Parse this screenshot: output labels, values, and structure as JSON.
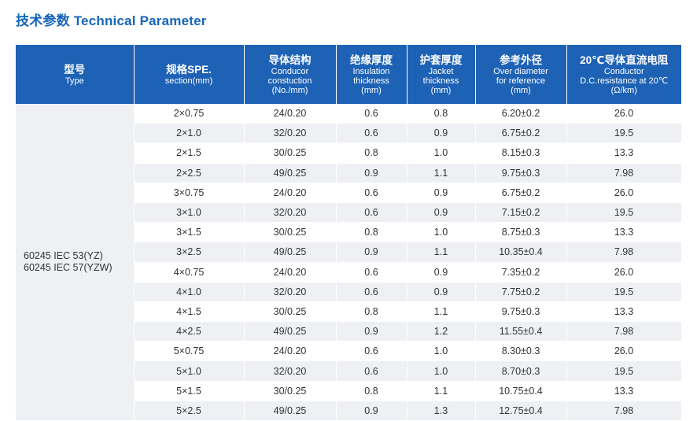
{
  "title": "技术参数 Technical Parameter",
  "headers": [
    {
      "main": "型号",
      "sub": [
        "Type"
      ]
    },
    {
      "main": "规格SPE.",
      "sub": [
        "section(mm)"
      ]
    },
    {
      "main": "导体结构",
      "sub": [
        "Conducor",
        "constuction",
        "(No./mm)"
      ]
    },
    {
      "main": "绝缘厚度",
      "sub": [
        "Insulation",
        "thickness",
        "(mm)"
      ]
    },
    {
      "main": "护套厚度",
      "sub": [
        "Jacket",
        "thickness",
        "(mm)"
      ]
    },
    {
      "main": "参考外径",
      "sub": [
        "Over diameter",
        "for reference",
        "(mm)"
      ]
    },
    {
      "main": "20℃导体直流电阻",
      "sub": [
        "Conductor",
        "D.C.resistance at 20℃",
        "(Ω/km)"
      ]
    }
  ],
  "type_lines": [
    "60245 IEC 53(YZ)",
    "60245 IEC 57(YZW)"
  ],
  "rows": [
    [
      "2×0.75",
      "24/0.20",
      "0.6",
      "0.8",
      "6.20±0.2",
      "26.0"
    ],
    [
      "2×1.0",
      "32/0.20",
      "0.6",
      "0.9",
      "6.75±0.2",
      "19.5"
    ],
    [
      "2×1.5",
      "30/0.25",
      "0.8",
      "1.0",
      "8.15±0.3",
      "13.3"
    ],
    [
      "2×2.5",
      "49/0.25",
      "0.9",
      "1.1",
      "9.75±0.3",
      "7.98"
    ],
    [
      "3×0.75",
      "24/0.20",
      "0.6",
      "0.9",
      "6.75±0.2",
      "26.0"
    ],
    [
      "3×1.0",
      "32/0.20",
      "0.6",
      "0.9",
      "7.15±0.2",
      "19.5"
    ],
    [
      "3×1.5",
      "30/0.25",
      "0.8",
      "1.0",
      "8.75±0.3",
      "13.3"
    ],
    [
      "3×2.5",
      "49/0.25",
      "0.9",
      "1.1",
      "10.35±0.4",
      "7.98"
    ],
    [
      "4×0.75",
      "24/0.20",
      "0.6",
      "0.9",
      "7.35±0.2",
      "26.0"
    ],
    [
      "4×1.0",
      "32/0.20",
      "0.6",
      "0.9",
      "7.75±0.2",
      "19.5"
    ],
    [
      "4×1.5",
      "30/0.25",
      "0.8",
      "1.1",
      "9.75±0.3",
      "13.3"
    ],
    [
      "4×2.5",
      "49/0.25",
      "0.9",
      "1.2",
      "11.55±0.4",
      "7.98"
    ],
    [
      "5×0.75",
      "24/0.20",
      "0.6",
      "1.0",
      "8.30±0.3",
      "26.0"
    ],
    [
      "5×1.0",
      "32/0.20",
      "0.6",
      "1.0",
      "8.70±0.3",
      "19.5"
    ],
    [
      "5×1.5",
      "30/0.25",
      "0.8",
      "1.1",
      "10.75±0.4",
      "13.3"
    ],
    [
      "5×2.5",
      "49/0.25",
      "0.9",
      "1.3",
      "12.75±0.4",
      "7.98"
    ]
  ]
}
